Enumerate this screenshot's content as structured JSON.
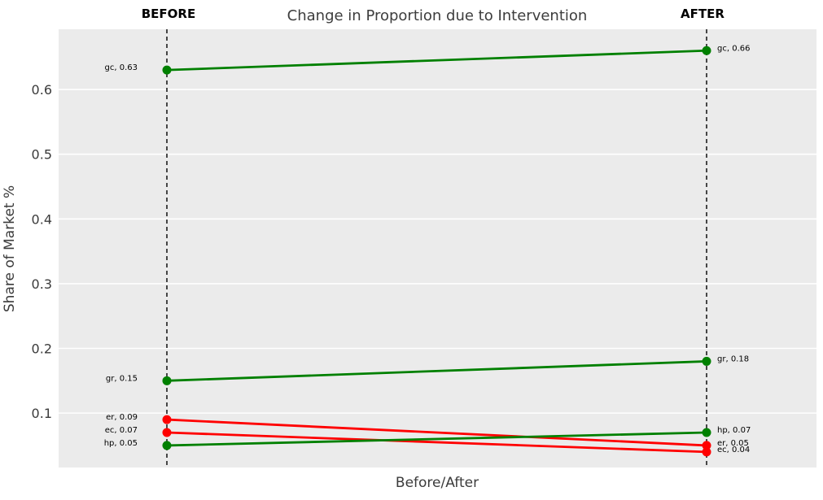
{
  "chart_data": {
    "type": "line",
    "subtype": "slopegraph",
    "title": "Change in Proportion due to Intervention",
    "xlabel": "Before/After",
    "ylabel": "Share of Market %",
    "column_headers": [
      "BEFORE",
      "AFTER"
    ],
    "categories": [
      "BEFORE",
      "AFTER"
    ],
    "yticks": [
      0.1,
      0.2,
      0.3,
      0.4,
      0.5,
      0.6
    ],
    "ylim": [
      0.016,
      0.693
    ],
    "grid": "horizontal-only",
    "legend": "none",
    "colors": {
      "panel_background": "#ebebeb",
      "gridline": "#ffffff",
      "increase_series": "#008000",
      "decrease_series": "#ff0000",
      "column_guide": "#000000",
      "axis_text": "#3b3b3b",
      "annotation_text": "#000000"
    },
    "series": [
      {
        "name": "gc",
        "color": "#008000",
        "values": [
          0.63,
          0.66
        ],
        "labels": [
          "gc, 0.63",
          "gc, 0.66"
        ]
      },
      {
        "name": "gr",
        "color": "#008000",
        "values": [
          0.15,
          0.18
        ],
        "labels": [
          "gr, 0.15",
          "gr, 0.18"
        ]
      },
      {
        "name": "er",
        "color": "#ff0000",
        "values": [
          0.09,
          0.05
        ],
        "labels": [
          "er, 0.09",
          "er, 0.05"
        ]
      },
      {
        "name": "ec",
        "color": "#ff0000",
        "values": [
          0.07,
          0.04
        ],
        "labels": [
          "ec, 0.07",
          "ec, 0.04"
        ]
      },
      {
        "name": "hp",
        "color": "#008000",
        "values": [
          0.05,
          0.07
        ],
        "labels": [
          "hp, 0.05",
          "hp, 0.07"
        ]
      }
    ]
  }
}
